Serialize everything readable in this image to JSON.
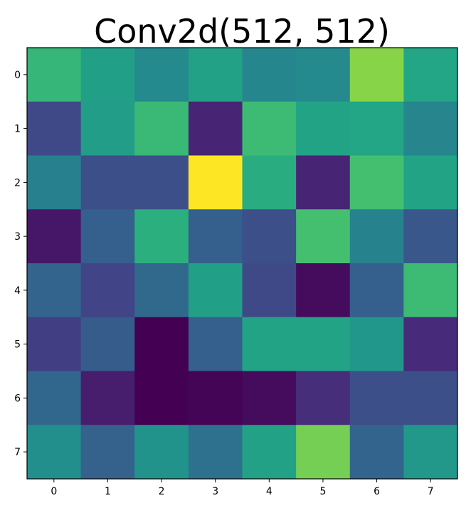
{
  "chart_data": {
    "type": "heatmap",
    "title": "Conv2d(512,  512)",
    "xlabel": "",
    "ylabel": "",
    "x_ticks": [
      "0",
      "1",
      "2",
      "3",
      "4",
      "5",
      "6",
      "7"
    ],
    "y_ticks": [
      "0",
      "1",
      "2",
      "3",
      "4",
      "5",
      "6",
      "7"
    ],
    "xlim": [
      -0.5,
      7.5
    ],
    "ylim": [
      7.5,
      -0.5
    ],
    "colormap": "viridis",
    "value_range": [
      0,
      1
    ],
    "grid": false,
    "legend": "none",
    "values": [
      [
        0.66,
        0.56,
        0.47,
        0.57,
        0.46,
        0.47,
        0.82,
        0.59
      ],
      [
        0.22,
        0.55,
        0.67,
        0.1,
        0.68,
        0.58,
        0.59,
        0.45
      ],
      [
        0.43,
        0.24,
        0.24,
        1.0,
        0.62,
        0.1,
        0.7,
        0.58
      ],
      [
        0.06,
        0.3,
        0.63,
        0.3,
        0.24,
        0.7,
        0.44,
        0.27
      ],
      [
        0.32,
        0.2,
        0.34,
        0.56,
        0.22,
        0.03,
        0.3,
        0.68
      ],
      [
        0.18,
        0.29,
        0.0,
        0.3,
        0.58,
        0.58,
        0.52,
        0.12
      ],
      [
        0.33,
        0.08,
        0.0,
        0.01,
        0.03,
        0.13,
        0.24,
        0.24
      ],
      [
        0.49,
        0.31,
        0.51,
        0.37,
        0.57,
        0.79,
        0.32,
        0.53
      ]
    ]
  }
}
